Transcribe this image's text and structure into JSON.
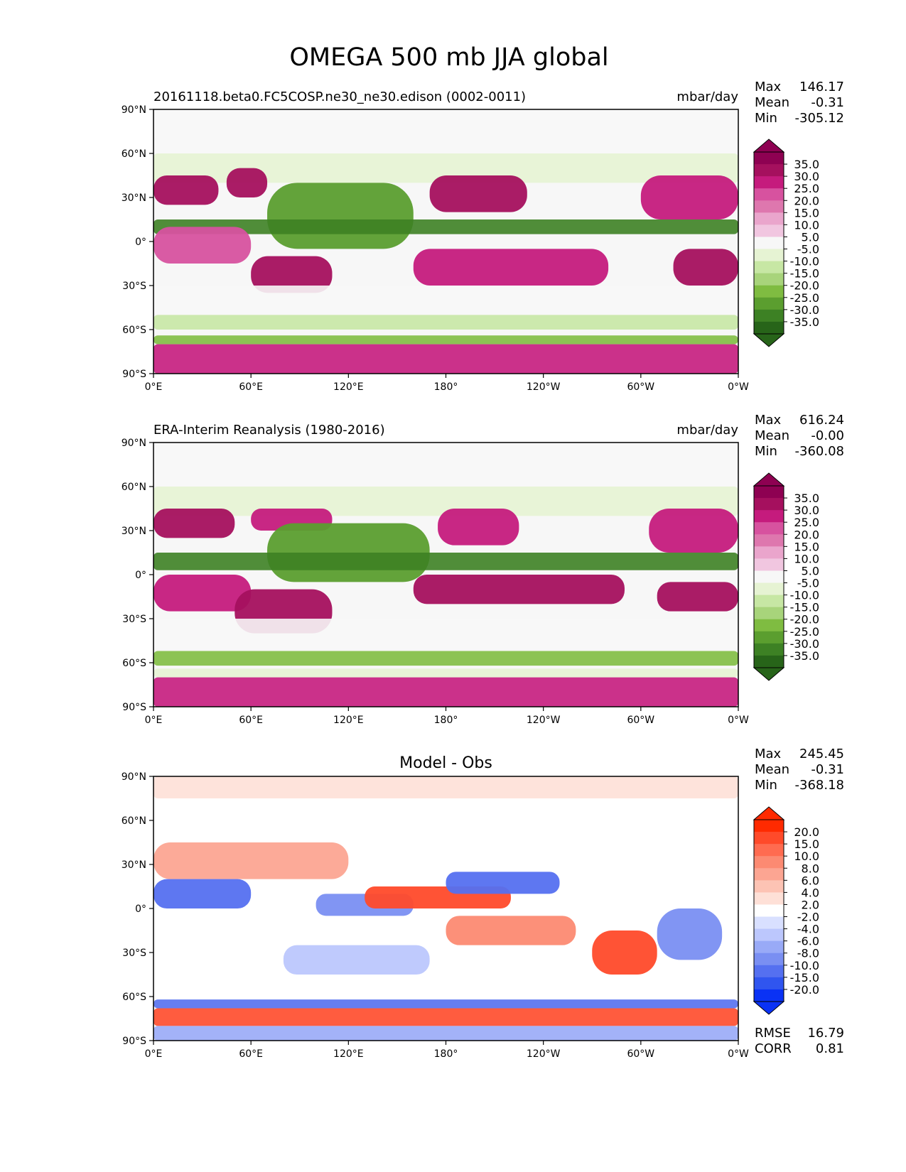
{
  "figure_title": "OMEGA 500 mb JJA global",
  "chart_data": [
    {
      "type": "heatmap",
      "title_left": "20161118.beta0.FC5COSP.ne30_ne30.edison (0002-0011)",
      "title_right": "mbar/day",
      "title_center": "",
      "stats": [
        {
          "label": "Max",
          "value": "146.17"
        },
        {
          "label": "Mean",
          "value": "-0.31"
        },
        {
          "label": "Min",
          "value": "-305.12"
        }
      ],
      "extra_stats": [],
      "colorbar": {
        "labels": [
          "35.0",
          "30.0",
          "25.0",
          "20.0",
          "15.0",
          "10.0",
          "5.0",
          "-5.0",
          "-10.0",
          "-15.0",
          "-20.0",
          "-25.0",
          "-30.0",
          "-35.0"
        ],
        "colors": [
          "#8e0152",
          "#a5105e",
          "#c51b7d",
          "#d7529f",
          "#de77ae",
          "#eaa5cc",
          "#f1c6e0",
          "#f7f7f7",
          "#e6f3d3",
          "#c7e7a4",
          "#a8d47b",
          "#7fbc41",
          "#5b9e2f",
          "#3d8124",
          "#276419"
        ],
        "over": "#8e0152",
        "under": "#276419"
      },
      "xticks": [
        "0°E",
        "60°E",
        "120°E",
        "180°",
        "120°W",
        "60°W",
        "0°W"
      ],
      "yticks": [
        "90°N",
        "60°N",
        "30°N",
        "0°",
        "30°S",
        "60°S",
        "90°S"
      ],
      "bands": [
        {
          "lat": [
            70,
            90
          ],
          "lon": [
            0,
            360
          ],
          "v": 0
        },
        {
          "lat": [
            60,
            70
          ],
          "lon": [
            0,
            360
          ],
          "v": -4
        },
        {
          "lat": [
            40,
            60
          ],
          "lon": [
            0,
            360
          ],
          "v": -6
        },
        {
          "lat": [
            25,
            45
          ],
          "lon": [
            0,
            40
          ],
          "v": 33
        },
        {
          "lat": [
            30,
            50
          ],
          "lon": [
            45,
            70
          ],
          "v": 30
        },
        {
          "lat": [
            -5,
            40
          ],
          "lon": [
            70,
            160
          ],
          "v": -28
        },
        {
          "lat": [
            5,
            15
          ],
          "lon": [
            0,
            360
          ],
          "v": -35
        },
        {
          "lat": [
            20,
            45
          ],
          "lon": [
            170,
            230
          ],
          "v": 30
        },
        {
          "lat": [
            15,
            45
          ],
          "lon": [
            300,
            360
          ],
          "v": 25
        },
        {
          "lat": [
            -15,
            10
          ],
          "lon": [
            0,
            60
          ],
          "v": 20
        },
        {
          "lat": [
            -35,
            -10
          ],
          "lon": [
            60,
            110
          ],
          "v": 33
        },
        {
          "lat": [
            -30,
            -5
          ],
          "lon": [
            160,
            280
          ],
          "v": 28
        },
        {
          "lat": [
            -30,
            -5
          ],
          "lon": [
            320,
            360
          ],
          "v": 30
        },
        {
          "lat": [
            -50,
            -30
          ],
          "lon": [
            0,
            360
          ],
          "v": -3
        },
        {
          "lat": [
            -60,
            -50
          ],
          "lon": [
            0,
            360
          ],
          "v": -12
        },
        {
          "lat": [
            -70,
            -64
          ],
          "lon": [
            0,
            360
          ],
          "v": -25
        },
        {
          "lat": [
            -90,
            -70
          ],
          "lon": [
            0,
            360
          ],
          "v": 27
        }
      ]
    },
    {
      "type": "heatmap",
      "title_left": "ERA-Interim Reanalysis (1980-2016)",
      "title_right": "mbar/day",
      "title_center": "",
      "stats": [
        {
          "label": "Max",
          "value": "616.24"
        },
        {
          "label": "Mean",
          "value": "-0.00"
        },
        {
          "label": "Min",
          "value": "-360.08"
        }
      ],
      "extra_stats": [],
      "colorbar": {
        "labels": [
          "35.0",
          "30.0",
          "25.0",
          "20.0",
          "15.0",
          "10.0",
          "5.0",
          "-5.0",
          "-10.0",
          "-15.0",
          "-20.0",
          "-25.0",
          "-30.0",
          "-35.0"
        ],
        "colors": [
          "#8e0152",
          "#a5105e",
          "#c51b7d",
          "#d7529f",
          "#de77ae",
          "#eaa5cc",
          "#f1c6e0",
          "#f7f7f7",
          "#e6f3d3",
          "#c7e7a4",
          "#a8d47b",
          "#7fbc41",
          "#5b9e2f",
          "#3d8124",
          "#276419"
        ],
        "over": "#8e0152",
        "under": "#276419"
      },
      "xticks": [
        "0°E",
        "60°E",
        "120°E",
        "180°",
        "120°W",
        "60°W",
        "0°W"
      ],
      "yticks": [
        "90°N",
        "60°N",
        "30°N",
        "0°",
        "30°S",
        "60°S",
        "90°S"
      ],
      "bands": [
        {
          "lat": [
            70,
            90
          ],
          "lon": [
            0,
            360
          ],
          "v": 0
        },
        {
          "lat": [
            60,
            70
          ],
          "lon": [
            0,
            360
          ],
          "v": -4
        },
        {
          "lat": [
            40,
            60
          ],
          "lon": [
            0,
            360
          ],
          "v": -8
        },
        {
          "lat": [
            25,
            45
          ],
          "lon": [
            0,
            50
          ],
          "v": 33
        },
        {
          "lat": [
            30,
            45
          ],
          "lon": [
            60,
            110
          ],
          "v": 28
        },
        {
          "lat": [
            -5,
            35
          ],
          "lon": [
            70,
            170
          ],
          "v": -30
        },
        {
          "lat": [
            3,
            15
          ],
          "lon": [
            0,
            360
          ],
          "v": -33
        },
        {
          "lat": [
            20,
            45
          ],
          "lon": [
            175,
            225
          ],
          "v": 28
        },
        {
          "lat": [
            15,
            45
          ],
          "lon": [
            305,
            360
          ],
          "v": 26
        },
        {
          "lat": [
            -25,
            0
          ],
          "lon": [
            0,
            60
          ],
          "v": 28
        },
        {
          "lat": [
            -40,
            -10
          ],
          "lon": [
            50,
            110
          ],
          "v": 34
        },
        {
          "lat": [
            -20,
            0
          ],
          "lon": [
            160,
            290
          ],
          "v": 30
        },
        {
          "lat": [
            -25,
            -5
          ],
          "lon": [
            310,
            360
          ],
          "v": 30
        },
        {
          "lat": [
            -50,
            -30
          ],
          "lon": [
            0,
            360
          ],
          "v": -3
        },
        {
          "lat": [
            -62,
            -52
          ],
          "lon": [
            0,
            360
          ],
          "v": -25
        },
        {
          "lat": [
            -70,
            -64
          ],
          "lon": [
            0,
            360
          ],
          "v": -10
        },
        {
          "lat": [
            -90,
            -70
          ],
          "lon": [
            0,
            360
          ],
          "v": 28
        }
      ]
    },
    {
      "type": "heatmap",
      "title_left": "",
      "title_right": "",
      "title_center": "Model - Obs",
      "stats": [
        {
          "label": "Max",
          "value": "245.45"
        },
        {
          "label": "Mean",
          "value": "-0.31"
        },
        {
          "label": "Min",
          "value": "-368.18"
        }
      ],
      "extra_stats": [
        {
          "label": "RMSE",
          "value": "16.79"
        },
        {
          "label": "CORR",
          "value": "0.81"
        }
      ],
      "colorbar": {
        "labels": [
          "20.0",
          "15.0",
          "10.0",
          "8.0",
          "6.0",
          "4.0",
          "2.0",
          "-2.0",
          "-4.0",
          "-6.0",
          "-8.0",
          "-10.0",
          "-15.0",
          "-20.0"
        ],
        "colors": [
          "#ff2a00",
          "#ff4a2a",
          "#ff6b50",
          "#fc8a72",
          "#fca592",
          "#fdc3b4",
          "#fee0d7",
          "#ffffff",
          "#d9e0ff",
          "#bcc7fd",
          "#99aaf7",
          "#7a8ff2",
          "#5570f0",
          "#3055ef",
          "#0a32f5"
        ],
        "over": "#ff2a00",
        "under": "#0a32f5"
      },
      "xticks": [
        "0°E",
        "60°E",
        "120°E",
        "180°",
        "120°W",
        "60°W",
        "0°W"
      ],
      "yticks": [
        "90°N",
        "60°N",
        "30°N",
        "0°",
        "30°S",
        "60°S",
        "90°S"
      ],
      "bands": [
        {
          "lat": [
            75,
            90
          ],
          "lon": [
            0,
            360
          ],
          "v": 2
        },
        {
          "lat": [
            55,
            75
          ],
          "lon": [
            0,
            360
          ],
          "v": -1
        },
        {
          "lat": [
            20,
            45
          ],
          "lon": [
            0,
            120
          ],
          "v": 6
        },
        {
          "lat": [
            0,
            20
          ],
          "lon": [
            0,
            60
          ],
          "v": -15
        },
        {
          "lat": [
            -5,
            10
          ],
          "lon": [
            100,
            160
          ],
          "v": -10
        },
        {
          "lat": [
            0,
            15
          ],
          "lon": [
            130,
            220
          ],
          "v": 18
        },
        {
          "lat": [
            10,
            25
          ],
          "lon": [
            180,
            250
          ],
          "v": -12
        },
        {
          "lat": [
            -25,
            -5
          ],
          "lon": [
            180,
            260
          ],
          "v": 8
        },
        {
          "lat": [
            -45,
            -15
          ],
          "lon": [
            270,
            310
          ],
          "v": 15
        },
        {
          "lat": [
            -35,
            0
          ],
          "lon": [
            310,
            350
          ],
          "v": -10
        },
        {
          "lat": [
            -45,
            -25
          ],
          "lon": [
            80,
            170
          ],
          "v": -6
        },
        {
          "lat": [
            -68,
            -62
          ],
          "lon": [
            0,
            360
          ],
          "v": -12
        },
        {
          "lat": [
            -80,
            -68
          ],
          "lon": [
            0,
            360
          ],
          "v": 15
        },
        {
          "lat": [
            -90,
            -80
          ],
          "lon": [
            0,
            360
          ],
          "v": -8
        }
      ]
    }
  ]
}
